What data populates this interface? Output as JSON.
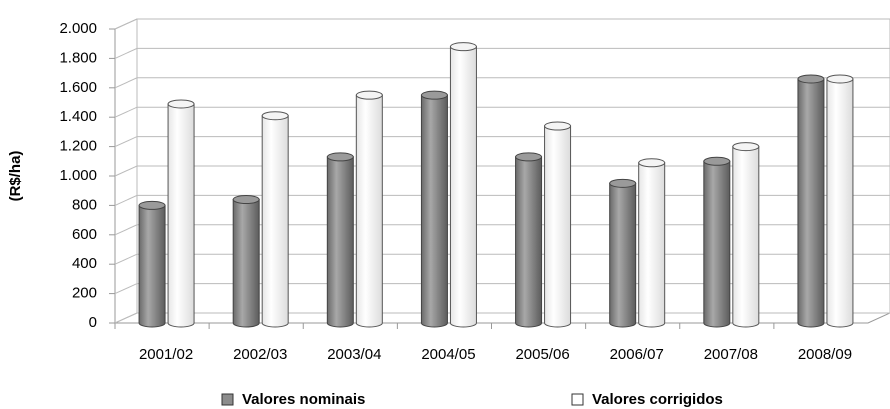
{
  "chart_data": {
    "type": "bar",
    "y_label": "(R$/ha)",
    "categories": [
      "2001/02",
      "2002/03",
      "2003/04",
      "2004/05",
      "2005/06",
      "2006/07",
      "2007/08",
      "2008/09"
    ],
    "series": [
      {
        "name": "Valores nominais",
        "color": "#8c8c8c",
        "values": [
          800,
          840,
          1130,
          1550,
          1130,
          950,
          1100,
          1660
        ]
      },
      {
        "name": "Valores corrigidos",
        "color": "#ffffff",
        "values": [
          1490,
          1410,
          1550,
          1880,
          1340,
          1090,
          1200,
          1660
        ]
      }
    ],
    "ylim": [
      0,
      2000
    ],
    "yticks": [
      0,
      200,
      400,
      600,
      800,
      {
        "value": 1000,
        "label": "1.000"
      },
      {
        "value": 1200,
        "label": "1.200"
      },
      {
        "value": 1400,
        "label": "1.400"
      },
      {
        "value": 1600,
        "label": "1.600"
      },
      {
        "value": 1800,
        "label": "1.800"
      },
      {
        "value": 2000,
        "label": "2.000"
      }
    ],
    "grid": true,
    "legend": "bottom"
  }
}
